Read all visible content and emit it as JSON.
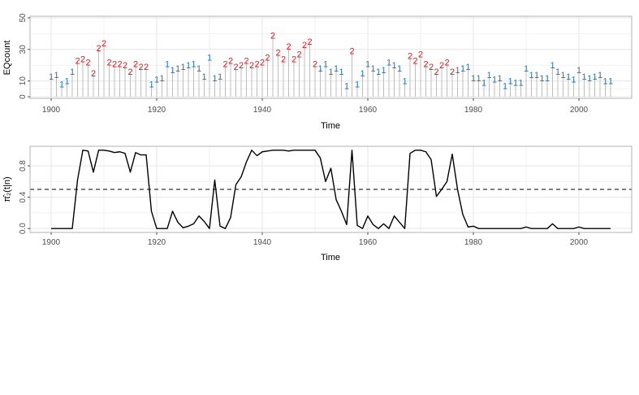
{
  "chart_data": [
    {
      "type": "line",
      "subtype": "vertical-lines-with-state-labels",
      "xlabel": "Time",
      "ylabel": "EQcount",
      "xlim": [
        1896,
        2010
      ],
      "ylim": [
        -1,
        51
      ],
      "x_ticks": [
        1900,
        1920,
        1940,
        1960,
        1980,
        2000
      ],
      "y_ticks": [
        0,
        10,
        30,
        50
      ],
      "grid": true,
      "state_colors": {
        "1": "#1f78b4",
        "2": "#e31a1c"
      },
      "series": [
        {
          "x": [
            1900,
            1901,
            1902,
            1903,
            1904,
            1905,
            1906,
            1907,
            1908,
            1909,
            1910,
            1911,
            1912,
            1913,
            1914,
            1915,
            1916,
            1917,
            1918,
            1919,
            1920,
            1921,
            1922,
            1923,
            1924,
            1925,
            1926,
            1927,
            1928,
            1929,
            1930,
            1931,
            1932,
            1933,
            1934,
            1935,
            1936,
            1937,
            1938,
            1939,
            1940,
            1941,
            1942,
            1943,
            1944,
            1945,
            1946,
            1947,
            1948,
            1949,
            1950,
            1951,
            1952,
            1953,
            1954,
            1955,
            1956,
            1957,
            1958,
            1959,
            1960,
            1961,
            1962,
            1963,
            1964,
            1965,
            1966,
            1967,
            1968,
            1969,
            1970,
            1971,
            1972,
            1973,
            1974,
            1975,
            1976,
            1977,
            1978,
            1979,
            1980,
            1981,
            1982,
            1983,
            1984,
            1985,
            1986,
            1987,
            1988,
            1989,
            1990,
            1991,
            1992,
            1993,
            1994,
            1995,
            1996,
            1997,
            1998,
            1999,
            2000,
            2001,
            2002,
            2003,
            2004,
            2005,
            2006
          ],
          "values": [
            13,
            14,
            8,
            10,
            16,
            23,
            24,
            22,
            15,
            31,
            34,
            22,
            21,
            21,
            20,
            16,
            21,
            19,
            19,
            8,
            11,
            12,
            21,
            17,
            18,
            19,
            20,
            21,
            18,
            13,
            25,
            12,
            13,
            21,
            23,
            19,
            20,
            23,
            20,
            21,
            22,
            25,
            39,
            28,
            24,
            32,
            24,
            27,
            33,
            35,
            21,
            18,
            21,
            16,
            18,
            16,
            7,
            29,
            8,
            15,
            21,
            18,
            16,
            17,
            22,
            20,
            18,
            10,
            26,
            23,
            27,
            21,
            19,
            16,
            20,
            22,
            16,
            17,
            18,
            19,
            12,
            12,
            9,
            14,
            11,
            12,
            7,
            10,
            9,
            9,
            18,
            14,
            14,
            12,
            12,
            20,
            16,
            14,
            13,
            11,
            17,
            13,
            12,
            13,
            14,
            10,
            10
          ],
          "states": [
            1,
            1,
            1,
            1,
            1,
            2,
            2,
            2,
            2,
            2,
            2,
            2,
            2,
            2,
            2,
            2,
            2,
            2,
            2,
            1,
            1,
            1,
            1,
            1,
            1,
            1,
            1,
            1,
            1,
            1,
            1,
            1,
            1,
            2,
            2,
            2,
            2,
            2,
            2,
            2,
            2,
            2,
            2,
            2,
            2,
            2,
            2,
            2,
            2,
            2,
            2,
            1,
            1,
            1,
            1,
            1,
            1,
            2,
            1,
            1,
            1,
            1,
            1,
            1,
            1,
            1,
            1,
            1,
            2,
            2,
            2,
            2,
            2,
            2,
            2,
            2,
            2,
            1,
            1,
            1,
            1,
            1,
            1,
            1,
            1,
            1,
            1,
            1,
            1,
            1,
            1,
            1,
            1,
            1,
            1,
            1,
            1,
            1,
            1,
            1,
            1,
            1,
            1,
            1,
            1,
            1,
            1
          ]
        }
      ]
    },
    {
      "type": "line",
      "xlabel": "Time",
      "ylabel": "π̂₂(t|n)",
      "xlim": [
        1896,
        2010
      ],
      "ylim": [
        -0.05,
        1.05
      ],
      "x_ticks": [
        1900,
        1920,
        1940,
        1960,
        1980,
        2000
      ],
      "y_ticks": [
        0.0,
        0.4,
        0.8
      ],
      "grid": true,
      "reference_line": {
        "y": 0.5,
        "style": "dashed"
      },
      "series": [
        {
          "x": [
            1900,
            1901,
            1902,
            1903,
            1904,
            1905,
            1906,
            1907,
            1908,
            1909,
            1910,
            1911,
            1912,
            1913,
            1914,
            1915,
            1916,
            1917,
            1918,
            1919,
            1920,
            1921,
            1922,
            1923,
            1924,
            1925,
            1926,
            1927,
            1928,
            1929,
            1930,
            1931,
            1932,
            1933,
            1934,
            1935,
            1936,
            1937,
            1938,
            1939,
            1940,
            1941,
            1942,
            1943,
            1944,
            1945,
            1946,
            1947,
            1948,
            1949,
            1950,
            1951,
            1952,
            1953,
            1954,
            1955,
            1956,
            1957,
            1958,
            1959,
            1960,
            1961,
            1962,
            1963,
            1964,
            1965,
            1966,
            1967,
            1968,
            1969,
            1970,
            1971,
            1972,
            1973,
            1974,
            1975,
            1976,
            1977,
            1978,
            1979,
            1980,
            1981,
            1982,
            1983,
            1984,
            1985,
            1986,
            1987,
            1988,
            1989,
            1990,
            1991,
            1992,
            1993,
            1994,
            1995,
            1996,
            1997,
            1998,
            1999,
            2000,
            2001,
            2002,
            2003,
            2004,
            2005,
            2006
          ],
          "values": [
            0.0,
            0.0,
            0.0,
            0.0,
            0.0,
            0.62,
            1.0,
            0.99,
            0.72,
            1.0,
            1.0,
            0.99,
            0.97,
            0.98,
            0.96,
            0.72,
            0.97,
            0.94,
            0.94,
            0.22,
            0.0,
            0.0,
            0.0,
            0.22,
            0.08,
            0.01,
            0.03,
            0.06,
            0.16,
            0.09,
            0.0,
            0.62,
            0.03,
            0.0,
            0.14,
            0.56,
            0.66,
            0.85,
            1.0,
            0.93,
            0.98,
            0.99,
            1.0,
            1.0,
            1.0,
            0.99,
            1.0,
            1.0,
            1.0,
            1.0,
            1.0,
            0.9,
            0.6,
            0.77,
            0.37,
            0.22,
            0.05,
            1.0,
            0.04,
            0.0,
            0.16,
            0.05,
            0.0,
            0.06,
            0.0,
            0.16,
            0.08,
            0.0,
            0.96,
            1.0,
            1.0,
            0.98,
            0.88,
            0.41,
            0.5,
            0.6,
            0.95,
            0.5,
            0.18,
            0.02,
            0.03,
            0.0,
            0.0,
            0.0,
            0.0,
            0.0,
            0.0,
            0.0,
            0.0,
            0.0,
            0.02,
            0.0,
            0.0,
            0.0,
            0.0,
            0.06,
            0.0,
            0.0,
            0.0,
            0.0,
            0.02,
            0.0,
            0.0,
            0.0,
            0.0,
            0.0,
            0.0
          ]
        }
      ]
    }
  ]
}
